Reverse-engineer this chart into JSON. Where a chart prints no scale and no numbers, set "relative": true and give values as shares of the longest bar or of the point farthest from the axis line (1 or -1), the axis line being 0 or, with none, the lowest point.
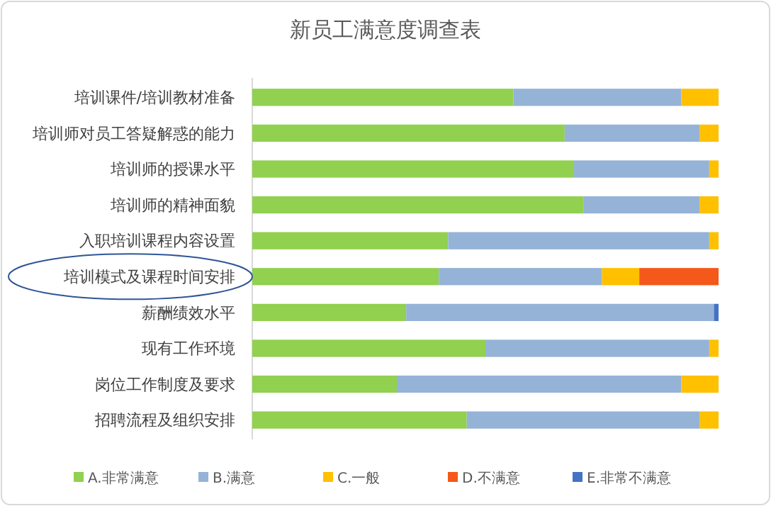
{
  "chart_data": {
    "type": "bar",
    "title": "新员工满意度调查表",
    "orientation": "horizontal",
    "stacked": true,
    "relative": true,
    "legend": "bottom",
    "categories": [
      "培训课件/培训教材准备",
      "培训师对员工答疑解惑的能力",
      "培训师的授课水平",
      "培训师的精神面貌",
      "入职培训课程内容设置",
      "培训模式及课程时间安排",
      "薪酬绩效水平",
      "现有工作环境",
      "岗位工作制度及要求",
      "招聘流程及组织安排"
    ],
    "series": [
      {
        "name": "A.非常满意",
        "color": "#92d050",
        "values": [
          0.56,
          0.67,
          0.69,
          0.71,
          0.42,
          0.4,
          0.33,
          0.5,
          0.31,
          0.46
        ]
      },
      {
        "name": "B.满意",
        "color": "#95b3d7",
        "values": [
          0.36,
          0.29,
          0.29,
          0.25,
          0.56,
          0.35,
          0.66,
          0.48,
          0.61,
          0.5
        ]
      },
      {
        "name": "C.一般",
        "color": "#ffc000",
        "values": [
          0.08,
          0.04,
          0.02,
          0.04,
          0.02,
          0.08,
          0,
          0.02,
          0.08,
          0.04
        ]
      },
      {
        "name": "D.不满意",
        "color": "#f4581a",
        "values": [
          0,
          0,
          0,
          0,
          0,
          0.17,
          0,
          0,
          0,
          0
        ]
      },
      {
        "name": "E.非常不满意",
        "color": "#4472c4",
        "values": [
          0,
          0,
          0,
          0,
          0,
          0,
          0.01,
          0,
          0,
          0
        ]
      }
    ]
  }
}
